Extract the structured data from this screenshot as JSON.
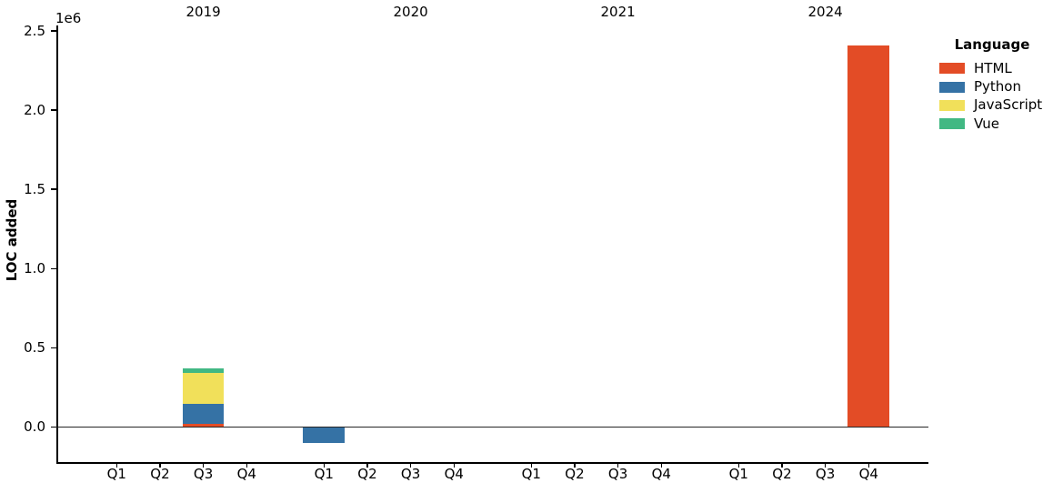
{
  "chart_data": {
    "type": "bar",
    "stacked": true,
    "title": "",
    "xlabel": "",
    "ylabel": "LOC added",
    "y_offset_label": "1e6",
    "year_groups": [
      "2019",
      "2020",
      "2021",
      "2024"
    ],
    "quarter_labels": [
      "Q1",
      "Q2",
      "Q3",
      "Q4"
    ],
    "categories": [
      "2019 Q1",
      "2019 Q2",
      "2019 Q3",
      "2019 Q4",
      "2020 Q1",
      "2020 Q2",
      "2020 Q3",
      "2020 Q4",
      "2021 Q1",
      "2021 Q2",
      "2021 Q3",
      "2021 Q4",
      "2024 Q1",
      "2024 Q2",
      "2024 Q3",
      "2024 Q4"
    ],
    "series": [
      {
        "name": "HTML",
        "color": "#e34c26",
        "values": [
          0,
          0,
          20000,
          0,
          0,
          0,
          0,
          0,
          0,
          0,
          0,
          0,
          0,
          0,
          0,
          2410000
        ]
      },
      {
        "name": "Python",
        "color": "#3572a5",
        "values": [
          0,
          0,
          125000,
          0,
          -100000,
          0,
          0,
          0,
          0,
          0,
          0,
          0,
          0,
          0,
          0,
          0
        ]
      },
      {
        "name": "JavaScript",
        "color": "#f1e05a",
        "values": [
          0,
          0,
          197000,
          0,
          0,
          0,
          0,
          0,
          0,
          0,
          0,
          0,
          0,
          0,
          0,
          0
        ]
      },
      {
        "name": "Vue",
        "color": "#41b883",
        "values": [
          0,
          0,
          30000,
          0,
          0,
          0,
          0,
          0,
          0,
          0,
          0,
          0,
          0,
          0,
          0,
          0
        ]
      }
    ],
    "yticks": [
      0,
      500000,
      1000000,
      1500000,
      2000000,
      2500000
    ],
    "ytick_labels": [
      "0.0",
      "0.5",
      "1.0",
      "1.5",
      "2.0",
      "2.5"
    ],
    "ylim": [
      -225000,
      2533000
    ],
    "zero_line": true,
    "grid": false,
    "legend": {
      "title": "Language",
      "position": "upper right"
    }
  }
}
